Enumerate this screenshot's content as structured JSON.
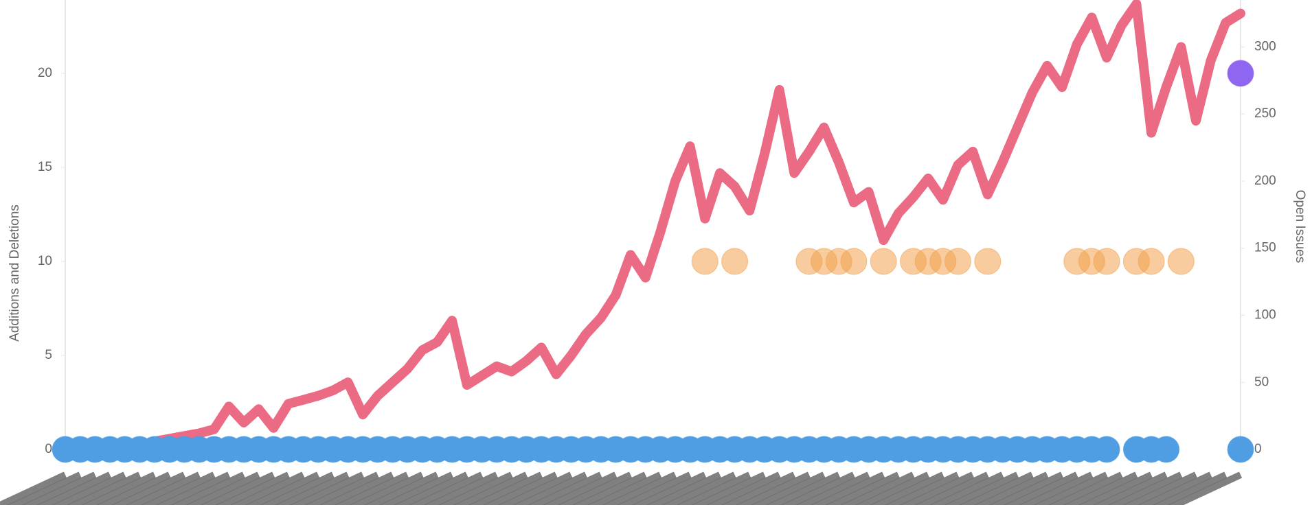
{
  "chart_data": {
    "type": "combo",
    "ylabel": "Additions and Deletions",
    "y2label": "Open Issues",
    "categories": [
      null,
      null,
      null,
      null,
      null,
      null,
      null,
      null,
      null,
      null,
      null,
      null,
      null,
      null,
      null,
      null,
      null,
      null,
      null,
      null,
      null,
      null,
      null,
      null,
      null,
      null,
      null,
      null,
      null,
      null,
      null,
      null,
      null,
      null,
      null,
      null,
      null,
      null,
      null,
      null,
      null,
      null,
      null,
      null,
      null,
      null,
      null,
      null,
      null,
      null,
      null,
      null,
      null,
      null,
      null,
      null,
      null,
      null,
      null,
      null,
      null,
      null,
      null,
      null,
      null,
      null,
      null,
      null,
      null,
      null,
      null,
      null,
      null,
      null,
      null,
      null,
      null,
      null,
      null,
      null
    ],
    "ylim": [
      0,
      23.9
    ],
    "yticks": [
      0,
      5,
      10,
      15,
      20
    ],
    "y2lim": [
      0,
      335
    ],
    "y2ticks": [
      0,
      50,
      100,
      150,
      200,
      250,
      300
    ],
    "series": [
      {
        "type": "line",
        "axis": "y2",
        "color": "#eb6a84",
        "values": [
          0,
          0,
          0,
          2,
          4,
          3,
          6,
          8,
          10,
          12,
          15,
          32,
          20,
          30,
          16,
          34,
          37,
          40,
          44,
          50,
          26,
          40,
          50,
          60,
          74,
          80,
          96,
          48,
          55,
          62,
          58,
          66,
          76,
          56,
          70,
          86,
          98,
          115,
          145,
          128,
          162,
          200,
          226,
          172,
          206,
          196,
          178,
          220,
          268,
          206,
          222,
          240,
          214,
          184,
          192,
          156,
          176,
          188,
          202,
          186,
          212,
          222,
          190,
          214,
          240,
          266,
          286,
          270,
          302,
          322,
          292,
          316,
          332,
          236,
          270,
          300,
          245,
          290,
          318,
          325
        ]
      },
      {
        "type": "scatter",
        "color": "#4f9de3",
        "values": [
          0,
          0,
          0,
          0,
          0,
          0,
          0,
          0,
          0,
          0,
          0,
          0,
          0,
          0,
          0,
          0,
          0,
          0,
          0,
          0,
          0,
          0,
          0,
          0,
          0,
          0,
          0,
          0,
          0,
          0,
          0,
          0,
          0,
          0,
          0,
          0,
          0,
          0,
          0,
          0,
          0,
          0,
          0,
          0,
          0,
          0,
          0,
          0,
          0,
          0,
          0,
          0,
          0,
          0,
          0,
          0,
          0,
          0,
          0,
          0,
          0,
          0,
          0,
          0,
          0,
          0,
          0,
          0,
          0,
          0,
          0,
          null,
          0,
          0,
          0,
          null,
          null,
          null,
          null,
          0
        ]
      },
      {
        "type": "scatter",
        "color": "#f2a24e",
        "values": [
          null,
          null,
          null,
          null,
          null,
          null,
          null,
          null,
          null,
          null,
          null,
          null,
          null,
          null,
          null,
          null,
          null,
          null,
          null,
          null,
          null,
          null,
          null,
          null,
          null,
          null,
          null,
          null,
          null,
          null,
          null,
          null,
          null,
          null,
          null,
          null,
          null,
          null,
          null,
          null,
          null,
          null,
          null,
          10,
          null,
          10,
          null,
          null,
          null,
          null,
          10,
          10,
          10,
          10,
          null,
          10,
          null,
          10,
          10,
          10,
          10,
          null,
          10,
          null,
          null,
          null,
          null,
          null,
          10,
          10,
          10,
          null,
          10,
          10,
          null,
          10,
          null,
          null,
          null,
          null
        ]
      },
      {
        "type": "scatter",
        "color": "#8f66ef",
        "values": [
          null,
          null,
          null,
          null,
          null,
          null,
          null,
          null,
          null,
          null,
          null,
          null,
          null,
          null,
          null,
          null,
          null,
          null,
          null,
          null,
          null,
          null,
          null,
          null,
          null,
          null,
          null,
          null,
          null,
          null,
          null,
          null,
          null,
          null,
          null,
          null,
          null,
          null,
          null,
          null,
          null,
          null,
          null,
          null,
          null,
          null,
          null,
          null,
          null,
          null,
          null,
          null,
          null,
          null,
          null,
          null,
          null,
          null,
          null,
          null,
          null,
          null,
          null,
          null,
          null,
          null,
          null,
          null,
          null,
          null,
          null,
          null,
          null,
          null,
          null,
          null,
          null,
          null,
          null,
          20
        ]
      }
    ]
  }
}
